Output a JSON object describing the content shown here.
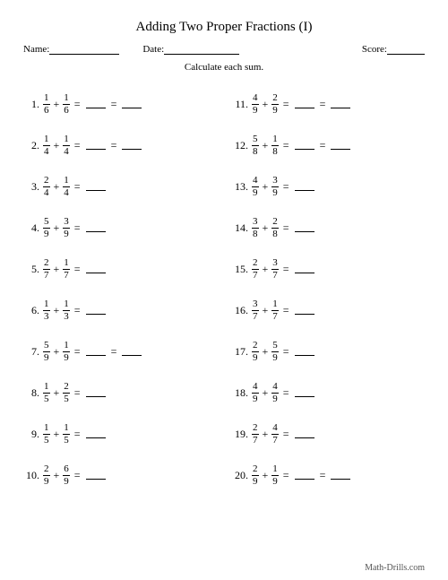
{
  "title": "Adding Two Proper Fractions (I)",
  "header": {
    "name_label": "Name:",
    "date_label": "Date:",
    "score_label": "Score:",
    "name_width": 78,
    "date_width": 84,
    "score_width": 42
  },
  "instruction": "Calculate each sum.",
  "footer": "Math-Drills.com",
  "blank_width": 22,
  "problems_left": [
    {
      "num": "1.",
      "a_n": "1",
      "a_d": "6",
      "b_n": "1",
      "b_d": "6",
      "blanks": 2
    },
    {
      "num": "2.",
      "a_n": "1",
      "a_d": "4",
      "b_n": "1",
      "b_d": "4",
      "blanks": 2
    },
    {
      "num": "3.",
      "a_n": "2",
      "a_d": "4",
      "b_n": "1",
      "b_d": "4",
      "blanks": 1
    },
    {
      "num": "4.",
      "a_n": "5",
      "a_d": "9",
      "b_n": "3",
      "b_d": "9",
      "blanks": 1
    },
    {
      "num": "5.",
      "a_n": "2",
      "a_d": "7",
      "b_n": "1",
      "b_d": "7",
      "blanks": 1
    },
    {
      "num": "6.",
      "a_n": "1",
      "a_d": "3",
      "b_n": "1",
      "b_d": "3",
      "blanks": 1
    },
    {
      "num": "7.",
      "a_n": "5",
      "a_d": "9",
      "b_n": "1",
      "b_d": "9",
      "blanks": 2
    },
    {
      "num": "8.",
      "a_n": "1",
      "a_d": "5",
      "b_n": "2",
      "b_d": "5",
      "blanks": 1
    },
    {
      "num": "9.",
      "a_n": "1",
      "a_d": "5",
      "b_n": "1",
      "b_d": "5",
      "blanks": 1
    },
    {
      "num": "10.",
      "a_n": "2",
      "a_d": "9",
      "b_n": "6",
      "b_d": "9",
      "blanks": 1
    }
  ],
  "problems_right": [
    {
      "num": "11.",
      "a_n": "4",
      "a_d": "9",
      "b_n": "2",
      "b_d": "9",
      "blanks": 2
    },
    {
      "num": "12.",
      "a_n": "5",
      "a_d": "8",
      "b_n": "1",
      "b_d": "8",
      "blanks": 2
    },
    {
      "num": "13.",
      "a_n": "4",
      "a_d": "9",
      "b_n": "3",
      "b_d": "9",
      "blanks": 1
    },
    {
      "num": "14.",
      "a_n": "3",
      "a_d": "8",
      "b_n": "2",
      "b_d": "8",
      "blanks": 1
    },
    {
      "num": "15.",
      "a_n": "2",
      "a_d": "7",
      "b_n": "3",
      "b_d": "7",
      "blanks": 1
    },
    {
      "num": "16.",
      "a_n": "3",
      "a_d": "7",
      "b_n": "1",
      "b_d": "7",
      "blanks": 1
    },
    {
      "num": "17.",
      "a_n": "2",
      "a_d": "9",
      "b_n": "5",
      "b_d": "9",
      "blanks": 1
    },
    {
      "num": "18.",
      "a_n": "4",
      "a_d": "9",
      "b_n": "4",
      "b_d": "9",
      "blanks": 1
    },
    {
      "num": "19.",
      "a_n": "2",
      "a_d": "7",
      "b_n": "4",
      "b_d": "7",
      "blanks": 1
    },
    {
      "num": "20.",
      "a_n": "2",
      "a_d": "9",
      "b_n": "1",
      "b_d": "9",
      "blanks": 2
    }
  ]
}
